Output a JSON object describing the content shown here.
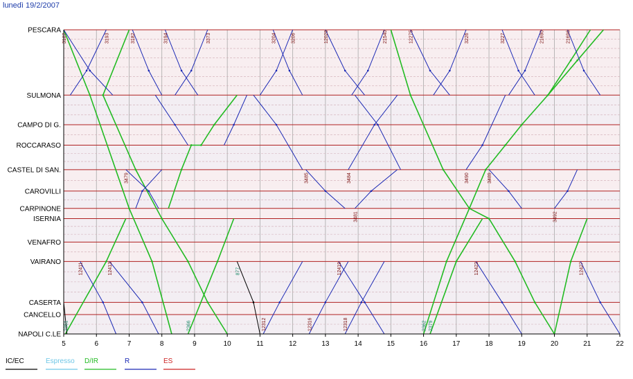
{
  "header": {
    "date": "lunedì 19/2/2007"
  },
  "chart_data": {
    "type": "line",
    "title": "",
    "xlabel": "",
    "ylabel": "",
    "xlim": [
      5,
      22
    ],
    "x_ticks": [
      "5",
      "6",
      "7",
      "8",
      "9",
      "10",
      "11",
      "12",
      "13",
      "14",
      "15",
      "16",
      "17",
      "18",
      "19",
      "20",
      "21",
      "22"
    ],
    "grid": true,
    "legend_position": "bottom-left",
    "stations": [
      {
        "name": "PESCARA",
        "km": 0
      },
      {
        "name": "SULMONA",
        "km": 64
      },
      {
        "name": "CAMPO DI G.",
        "km": 93
      },
      {
        "name": "ROCCARASO",
        "km": 113
      },
      {
        "name": "CASTEL DI SAN.",
        "km": 137
      },
      {
        "name": "CAROVILLI",
        "km": 158
      },
      {
        "name": "CARPINONE",
        "km": 175
      },
      {
        "name": "ISERNIA",
        "km": 185
      },
      {
        "name": "VENAFRO",
        "km": 208
      },
      {
        "name": "VAIRANO",
        "km": 227
      },
      {
        "name": "CASERTA",
        "km": 267
      },
      {
        "name": "CANCELLO",
        "km": 279
      },
      {
        "name": "NAPOLI C.LE",
        "km": 298
      }
    ],
    "legend": [
      {
        "name": "IC/EC",
        "color": "#000000"
      },
      {
        "name": "Espresso",
        "color": "#6ec6e6"
      },
      {
        "name": "D/IR",
        "color": "#22bb22"
      },
      {
        "name": "R",
        "color": "#1a28b4"
      },
      {
        "name": "ES",
        "color": "#cc2222"
      }
    ],
    "series": [
      {
        "category": "D/IR",
        "label": "2351",
        "points": [
          [
            5.05,
            298
          ],
          [
            6.3,
            227
          ],
          [
            6.9,
            185
          ]
        ]
      },
      {
        "category": "D/IR",
        "label": "",
        "points": [
          [
            5.0,
            0
          ],
          [
            5.8,
            64
          ],
          [
            7.0,
            175
          ],
          [
            7.7,
            227
          ],
          [
            8.3,
            298
          ]
        ]
      },
      {
        "category": "D/IR",
        "label": "",
        "points": [
          [
            7.0,
            0
          ],
          [
            6.2,
            64
          ],
          [
            7.2,
            137
          ],
          [
            8.0,
            185
          ],
          [
            8.8,
            227
          ],
          [
            9.4,
            267
          ],
          [
            10.0,
            298
          ]
        ]
      },
      {
        "category": "D/IR",
        "label": "",
        "points": [
          [
            8.2,
            175
          ],
          [
            8.6,
            137
          ],
          [
            8.9,
            113
          ],
          [
            9.2,
            113
          ],
          [
            9.6,
            93
          ],
          [
            10.3,
            64
          ]
        ]
      },
      {
        "category": "D/IR",
        "label": "2366",
        "points": [
          [
            8.8,
            298
          ],
          [
            9.7,
            227
          ],
          [
            10.2,
            185
          ]
        ]
      },
      {
        "category": "D/IR",
        "label": "2362",
        "points": [
          [
            16.0,
            298
          ],
          [
            16.7,
            227
          ],
          [
            17.4,
            175
          ],
          [
            17.9,
            137
          ],
          [
            18.5,
            113
          ],
          [
            19.0,
            93
          ],
          [
            19.8,
            64
          ],
          [
            20.5,
            30
          ],
          [
            21.1,
            0
          ]
        ]
      },
      {
        "category": "D/IR",
        "label": "",
        "points": [
          [
            15.0,
            0
          ],
          [
            15.6,
            64
          ],
          [
            16.6,
            137
          ],
          [
            17.4,
            175
          ],
          [
            18.0,
            185
          ],
          [
            18.8,
            227
          ],
          [
            19.4,
            267
          ],
          [
            20.0,
            298
          ]
        ]
      },
      {
        "category": "D/IR",
        "label": "2379",
        "points": [
          [
            16.2,
            298
          ],
          [
            17.0,
            227
          ],
          [
            17.8,
            185
          ]
        ]
      },
      {
        "category": "D/IR",
        "label": "",
        "points": [
          [
            20.0,
            298
          ],
          [
            20.5,
            227
          ],
          [
            21.0,
            185
          ]
        ]
      },
      {
        "category": "D/IR",
        "label": "",
        "points": [
          [
            19.8,
            64
          ],
          [
            20.7,
            30
          ],
          [
            21.5,
            0
          ]
        ]
      },
      {
        "category": "R",
        "label": "",
        "points": [
          [
            7.8,
            64
          ],
          [
            8.4,
            93
          ],
          [
            8.8,
            113
          ]
        ]
      },
      {
        "category": "R",
        "label": "3479",
        "points": [
          [
            6.9,
            137
          ],
          [
            7.6,
            158
          ],
          [
            7.9,
            175
          ]
        ]
      },
      {
        "category": "R",
        "label": "",
        "points": [
          [
            8.0,
            137
          ],
          [
            7.4,
            158
          ],
          [
            7.2,
            175
          ]
        ]
      },
      {
        "category": "R",
        "label": "",
        "points": [
          [
            10.8,
            64
          ],
          [
            11.5,
            93
          ],
          [
            12.3,
            137
          ]
        ]
      },
      {
        "category": "R",
        "label": "",
        "points": [
          [
            10.6,
            64
          ],
          [
            10.2,
            93
          ],
          [
            9.9,
            113
          ]
        ]
      },
      {
        "category": "R",
        "label": "3485",
        "points": [
          [
            12.4,
            137
          ],
          [
            13.0,
            158
          ],
          [
            13.6,
            175
          ]
        ]
      },
      {
        "category": "R",
        "label": "3484",
        "points": [
          [
            13.7,
            137
          ],
          [
            14.5,
            93
          ],
          [
            15.2,
            64
          ]
        ]
      },
      {
        "category": "R",
        "label": "",
        "points": [
          [
            13.9,
            64
          ],
          [
            14.6,
            93
          ],
          [
            15.3,
            137
          ]
        ]
      },
      {
        "category": "R",
        "label": "3481",
        "points": [
          [
            13.9,
            175
          ],
          [
            14.4,
            158
          ],
          [
            15.2,
            137
          ]
        ]
      },
      {
        "category": "R",
        "label": "3490",
        "points": [
          [
            17.3,
            137
          ],
          [
            17.8,
            113
          ],
          [
            18.5,
            64
          ]
        ]
      },
      {
        "category": "R",
        "label": "3489",
        "points": [
          [
            18.0,
            137
          ],
          [
            18.6,
            158
          ],
          [
            19.0,
            175
          ]
        ]
      },
      {
        "category": "R",
        "label": "3492",
        "points": [
          [
            20.0,
            175
          ],
          [
            20.4,
            158
          ],
          [
            20.7,
            137
          ]
        ]
      },
      {
        "category": "R",
        "label": "12411",
        "points": [
          [
            5.5,
            227
          ],
          [
            6.2,
            267
          ],
          [
            6.6,
            298
          ]
        ]
      },
      {
        "category": "R",
        "label": "12413",
        "points": [
          [
            6.4,
            227
          ],
          [
            7.4,
            267
          ],
          [
            7.9,
            298
          ]
        ]
      },
      {
        "category": "R",
        "label": "12419",
        "points": [
          [
            13.4,
            227
          ],
          [
            14.2,
            267
          ],
          [
            14.8,
            298
          ]
        ]
      },
      {
        "category": "R",
        "label": "12423",
        "points": [
          [
            17.6,
            227
          ],
          [
            18.4,
            267
          ],
          [
            19.0,
            298
          ]
        ]
      },
      {
        "category": "R",
        "label": "12427",
        "points": [
          [
            20.8,
            227
          ],
          [
            21.4,
            267
          ],
          [
            22.0,
            298
          ]
        ]
      },
      {
        "category": "R",
        "label": "12312",
        "points": [
          [
            11.1,
            298
          ],
          [
            11.6,
            267
          ],
          [
            12.3,
            227
          ]
        ]
      },
      {
        "category": "R",
        "label": "12316",
        "points": [
          [
            12.5,
            298
          ],
          [
            13.0,
            267
          ],
          [
            13.7,
            227
          ]
        ]
      },
      {
        "category": "R",
        "label": "12318",
        "points": [
          [
            13.6,
            298
          ],
          [
            14.1,
            267
          ],
          [
            14.8,
            227
          ]
        ]
      },
      {
        "category": "R",
        "label": "3187",
        "points": [
          [
            5.0,
            0
          ],
          [
            5.8,
            40
          ],
          [
            6.5,
            64
          ]
        ]
      },
      {
        "category": "R",
        "label": "3193",
        "points": [
          [
            6.3,
            0
          ],
          [
            5.7,
            40
          ],
          [
            5.2,
            64
          ]
        ]
      },
      {
        "category": "R",
        "label": "3182",
        "points": [
          [
            7.1,
            0
          ],
          [
            7.6,
            40
          ],
          [
            8.0,
            64
          ]
        ]
      },
      {
        "category": "R",
        "label": "3194",
        "points": [
          [
            8.1,
            0
          ],
          [
            8.6,
            40
          ],
          [
            9.1,
            64
          ]
        ]
      },
      {
        "category": "R",
        "label": "3373",
        "points": [
          [
            9.4,
            0
          ],
          [
            8.9,
            40
          ],
          [
            8.4,
            64
          ]
        ]
      },
      {
        "category": "R",
        "label": "3204",
        "points": [
          [
            11.4,
            0
          ],
          [
            11.9,
            40
          ],
          [
            12.3,
            64
          ]
        ]
      },
      {
        "category": "R",
        "label": "3206",
        "points": [
          [
            12.0,
            0
          ],
          [
            11.5,
            40
          ],
          [
            11.0,
            64
          ]
        ]
      },
      {
        "category": "R",
        "label": "12029",
        "points": [
          [
            13.0,
            0
          ],
          [
            13.6,
            40
          ],
          [
            14.2,
            64
          ]
        ]
      },
      {
        "category": "R",
        "label": "21540",
        "points": [
          [
            14.8,
            0
          ],
          [
            14.3,
            40
          ],
          [
            13.8,
            64
          ]
        ]
      },
      {
        "category": "R",
        "label": "12275",
        "points": [
          [
            15.6,
            0
          ],
          [
            16.2,
            40
          ],
          [
            16.8,
            64
          ]
        ]
      },
      {
        "category": "R",
        "label": "3226",
        "points": [
          [
            17.3,
            0
          ],
          [
            16.8,
            40
          ],
          [
            16.3,
            64
          ]
        ]
      },
      {
        "category": "R",
        "label": "3227",
        "points": [
          [
            18.4,
            0
          ],
          [
            18.9,
            40
          ],
          [
            19.4,
            64
          ]
        ]
      },
      {
        "category": "R",
        "label": "21690",
        "points": [
          [
            19.6,
            0
          ],
          [
            19.1,
            40
          ],
          [
            18.6,
            64
          ]
        ]
      },
      {
        "category": "R",
        "label": "21696",
        "points": [
          [
            20.4,
            0
          ],
          [
            20.9,
            40
          ],
          [
            21.4,
            64
          ]
        ]
      },
      {
        "category": "IC/EC",
        "label": "877",
        "points": [
          [
            10.3,
            227
          ],
          [
            10.8,
            267
          ],
          [
            11.0,
            298
          ]
        ]
      },
      {
        "category": "IC/EC",
        "label": "",
        "points": [
          [
            5.0,
            267
          ],
          [
            5.1,
            298
          ]
        ]
      }
    ]
  },
  "legend_labels": {
    "icec": "IC/EC",
    "espresso": "Espresso",
    "dir": "D/IR",
    "r": "R",
    "es": "ES"
  }
}
